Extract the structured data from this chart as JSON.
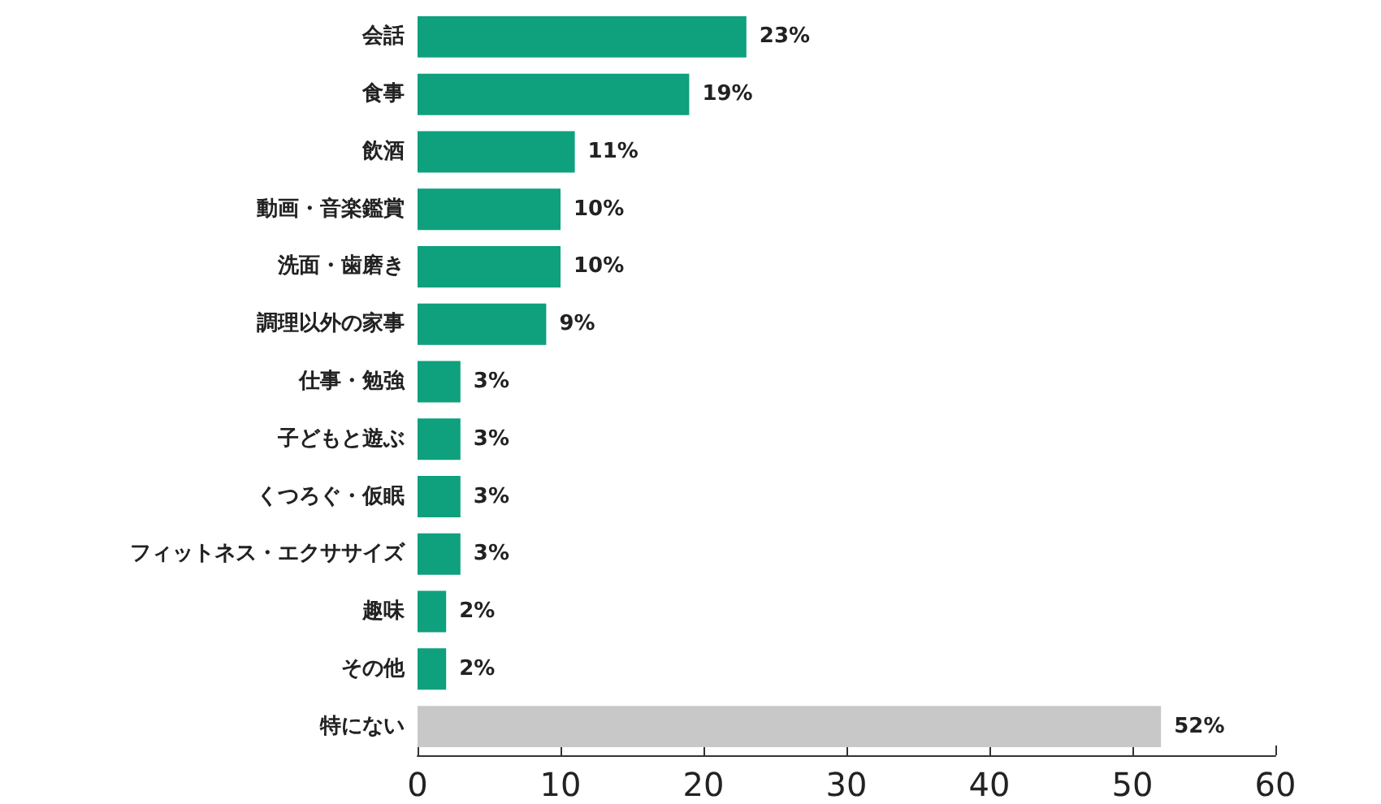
{
  "chart_data": {
    "type": "bar",
    "orientation": "horizontal",
    "categories": [
      "会話",
      "食事",
      "飲酒",
      "動画・音楽鑑賞",
      "洗面・歯磨き",
      "調理以外の家事",
      "仕事・勉強",
      "子どもと遊ぶ",
      "くつろぐ・仮眠",
      "フィットネス・エクササイズ",
      "趣味",
      "その他",
      "特にない"
    ],
    "values": [
      23,
      19,
      11,
      10,
      10,
      9,
      3,
      3,
      3,
      3,
      2,
      2,
      52
    ],
    "colors": [
      "#0fa07e",
      "#0fa07e",
      "#0fa07e",
      "#0fa07e",
      "#0fa07e",
      "#0fa07e",
      "#0fa07e",
      "#0fa07e",
      "#0fa07e",
      "#0fa07e",
      "#0fa07e",
      "#0fa07e",
      "#c8c8c8"
    ],
    "value_labels": [
      "23%",
      "19%",
      "11%",
      "10%",
      "10%",
      "9%",
      "3%",
      "3%",
      "3%",
      "3%",
      "2%",
      "2%",
      "52%"
    ],
    "xlim": [
      0,
      60
    ],
    "xticks": [
      0,
      10,
      20,
      30,
      40,
      50,
      60
    ],
    "grid": false
  }
}
